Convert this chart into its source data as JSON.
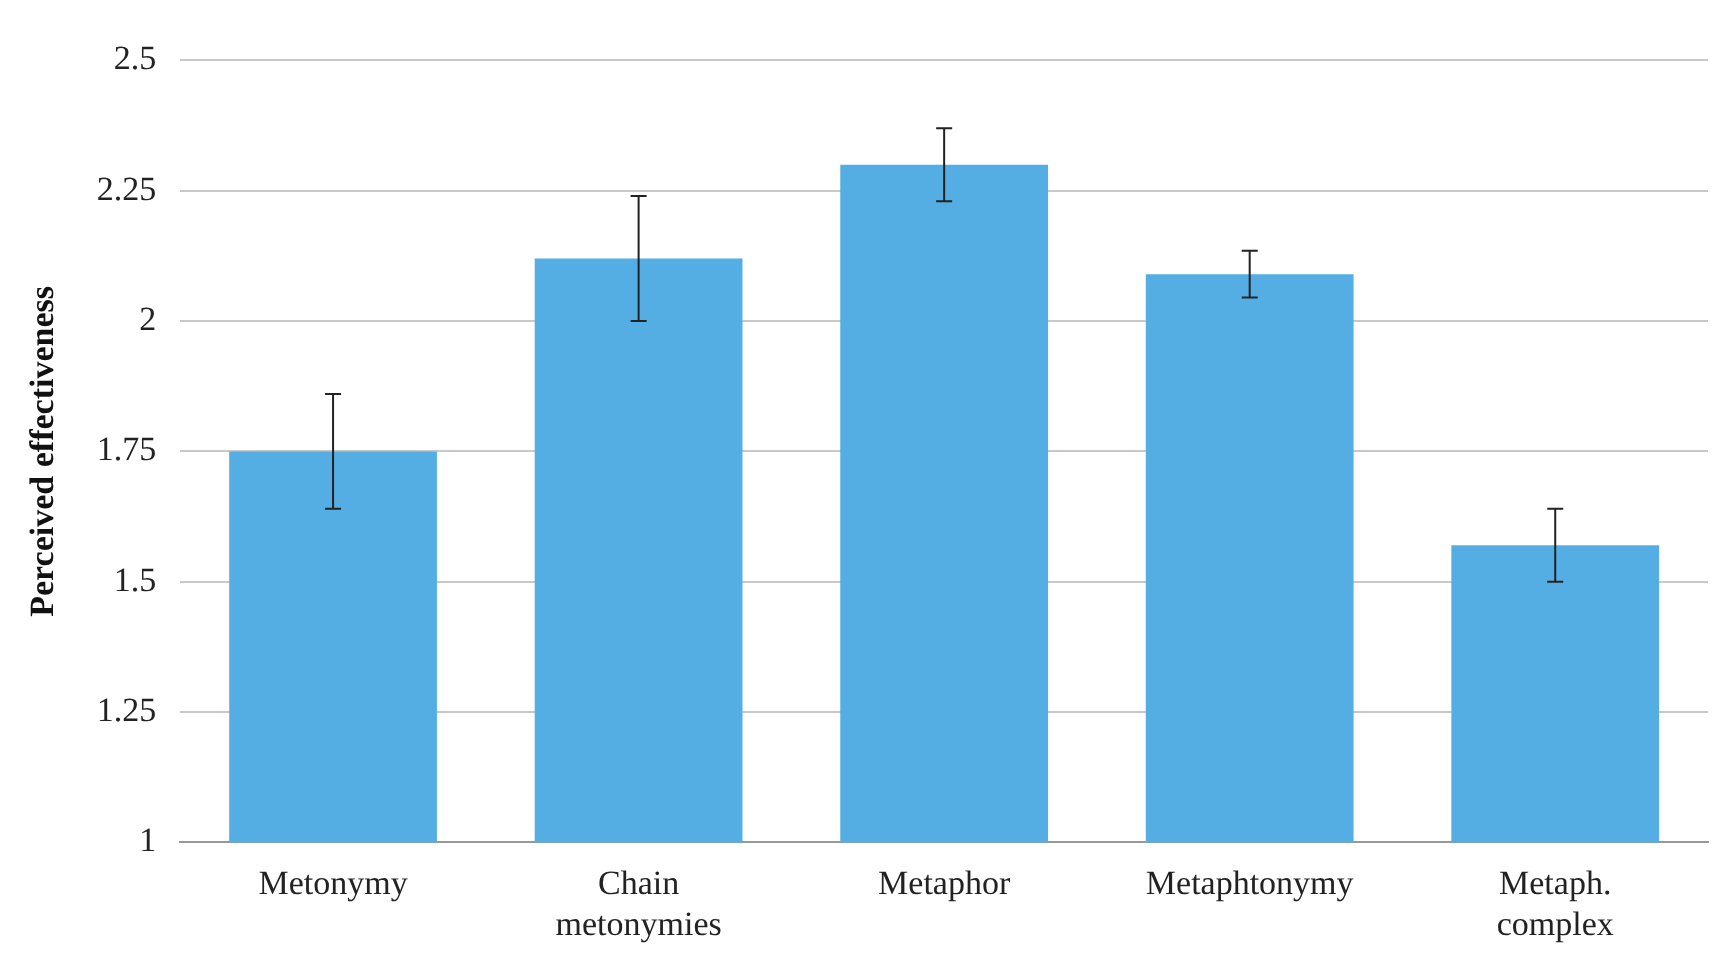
{
  "chart_data": {
    "type": "bar",
    "ylabel": "Perceived effectiveness",
    "categories": [
      "Metonymy",
      "Chain metonymies",
      "Metaphor",
      "Metaphtonymy",
      "Metaph. complex"
    ],
    "values": [
      1.75,
      2.12,
      2.3,
      2.09,
      1.57
    ],
    "errors": [
      [
        1.64,
        1.86
      ],
      [
        2.0,
        2.24
      ],
      [
        2.23,
        2.37
      ],
      [
        2.045,
        2.135
      ],
      [
        1.5,
        1.64
      ]
    ],
    "color": "#55aee3",
    "ylim": [
      1,
      2.5
    ],
    "yticks": [
      1,
      1.25,
      1.5,
      1.75,
      2,
      2.25,
      2.5
    ],
    "grid": "y",
    "legend": false
  }
}
